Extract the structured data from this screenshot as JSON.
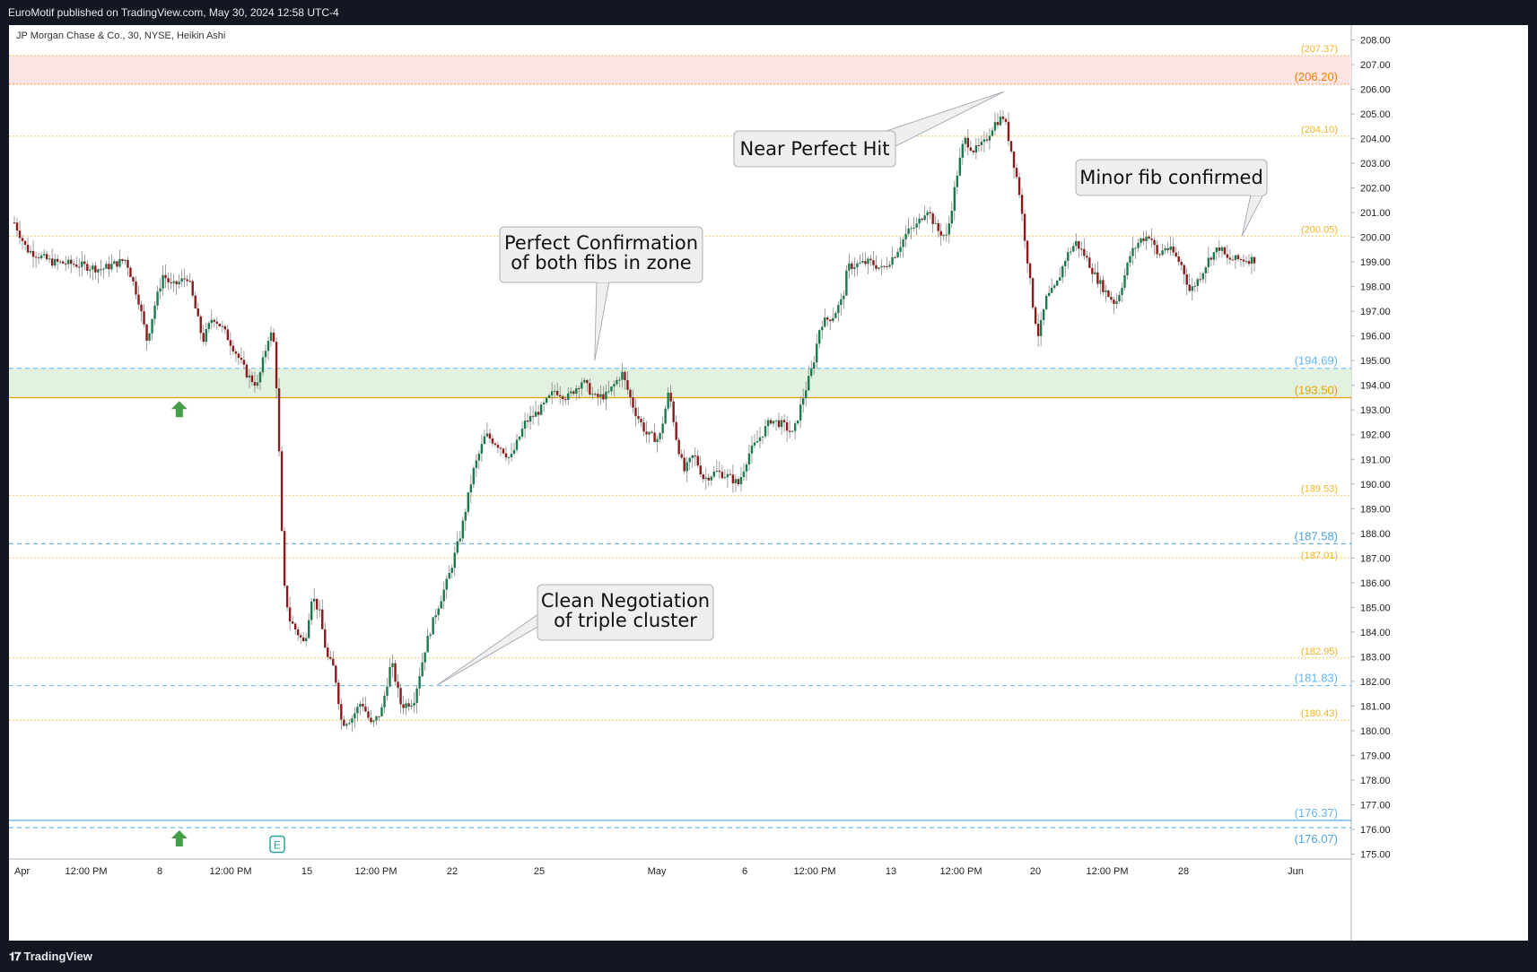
{
  "header": {
    "published": "EuroMotif published on TradingView.com, May 30, 2024 12:58 UTC-4"
  },
  "footer": {
    "logo_icon": "tradingview-logo-icon",
    "brand": "TradingView"
  },
  "chart_data": {
    "type": "candlestick",
    "legend": "JP Morgan Chase & Co., 30, NYSE, Heikin Ashi",
    "ylim": [
      174.8,
      208.6
    ],
    "y_ticks": [
      "208.00",
      "207.00",
      "206.00",
      "205.00",
      "204.00",
      "203.00",
      "202.00",
      "201.00",
      "200.00",
      "199.00",
      "198.00",
      "197.00",
      "196.00",
      "195.00",
      "194.00",
      "193.00",
      "192.00",
      "191.00",
      "190.00",
      "189.00",
      "188.00",
      "187.00",
      "186.00",
      "185.00",
      "184.00",
      "183.00",
      "182.00",
      "181.00",
      "180.00",
      "179.00",
      "178.00",
      "177.00",
      "176.00",
      "175.00"
    ],
    "x_labels": [
      "Apr",
      "12:00 PM",
      "8",
      "12:00 PM",
      "15",
      "12:00 PM",
      "22",
      "25",
      "May",
      "6",
      "12:00 PM",
      "13",
      "12:00 PM",
      "20",
      "12:00 PM",
      "28",
      "Jun"
    ],
    "levels": [
      {
        "value": 207.37,
        "label": "(207.37)",
        "color": "#f0b429",
        "style": "dotted"
      },
      {
        "value": 206.2,
        "label": "(206.20)",
        "color": "#f57c00",
        "style": "dotted"
      },
      {
        "value": 204.1,
        "label": "(204.10)",
        "color": "#f0b429",
        "style": "dotted"
      },
      {
        "value": 200.05,
        "label": "(200.05)",
        "color": "#f0b429",
        "style": "dotted"
      },
      {
        "value": 194.69,
        "label": "(194.69)",
        "color": "#64b5f6",
        "style": "dashed"
      },
      {
        "value": 193.5,
        "label": "(193.50)",
        "color": "#e6a100",
        "style": "solid"
      },
      {
        "value": 189.53,
        "label": "(189.53)",
        "color": "#f0b429",
        "style": "dotted"
      },
      {
        "value": 187.58,
        "label": "(187.58)",
        "color": "#4fa3e0",
        "style": "dashed"
      },
      {
        "value": 187.01,
        "label": "(187.01)",
        "color": "#f0b429",
        "style": "dotted"
      },
      {
        "value": 182.95,
        "label": "(182.95)",
        "color": "#f0b429",
        "style": "dotted"
      },
      {
        "value": 181.83,
        "label": "(181.83)",
        "color": "#64b5f6",
        "style": "dashed"
      },
      {
        "value": 180.43,
        "label": "(180.43)",
        "color": "#f0b429",
        "style": "dotted"
      },
      {
        "value": 176.37,
        "label": "(176.37)",
        "color": "#64b5f6",
        "style": "solid"
      },
      {
        "value": 176.07,
        "label": "(176.07)",
        "color": "#4fa3e0",
        "style": "dashed"
      }
    ],
    "zones": [
      {
        "from": 206.2,
        "to": 207.37,
        "color": "#fde5e3"
      },
      {
        "from": 193.5,
        "to": 194.69,
        "color": "#e3f1e1"
      }
    ],
    "annotations": [
      {
        "id": "near-perfect-hit",
        "lines": [
          "Near Perfect Hit"
        ],
        "target_t": 0.798,
        "target_v": 205.9
      },
      {
        "id": "minor-fib-confirmed",
        "lines": [
          "Minor fib confirmed"
        ],
        "target_t": 0.99,
        "target_v": 200.05
      },
      {
        "id": "perfect-confirmation",
        "lines": [
          "Perfect Confirmation",
          "of both fibs in zone"
        ],
        "target_t": 0.468,
        "target_v": 195.0
      },
      {
        "id": "clean-negotiation",
        "lines": [
          "Clean Negotiation",
          "of triple cluster"
        ],
        "target_t": 0.341,
        "target_v": 181.85
      }
    ],
    "markers": [
      {
        "type": "up-arrow",
        "t": 0.133,
        "v": 193.0,
        "color": "#43a047"
      },
      {
        "type": "up-arrow",
        "t": 0.133,
        "v": 175.6,
        "color": "#43a047"
      },
      {
        "type": "earnings",
        "label": "E",
        "t": 0.212,
        "v": 175.4,
        "color": "#26a69a"
      }
    ],
    "price_path": [
      [
        0.0,
        200.6
      ],
      [
        0.01,
        199.5
      ],
      [
        0.03,
        199.0
      ],
      [
        0.05,
        198.9
      ],
      [
        0.07,
        198.7
      ],
      [
        0.09,
        199.1
      ],
      [
        0.1,
        197.5
      ],
      [
        0.107,
        195.8
      ],
      [
        0.113,
        197.2
      ],
      [
        0.12,
        198.5
      ],
      [
        0.127,
        198.0
      ],
      [
        0.14,
        198.4
      ],
      [
        0.152,
        195.8
      ],
      [
        0.16,
        196.8
      ],
      [
        0.168,
        196.3
      ],
      [
        0.178,
        195.4
      ],
      [
        0.188,
        194.4
      ],
      [
        0.196,
        194.0
      ],
      [
        0.206,
        196.2
      ],
      [
        0.21,
        195.6
      ],
      [
        0.213,
        192.0
      ],
      [
        0.217,
        186.0
      ],
      [
        0.222,
        184.5
      ],
      [
        0.228,
        184.0
      ],
      [
        0.234,
        183.5
      ],
      [
        0.24,
        185.5
      ],
      [
        0.246,
        184.8
      ],
      [
        0.252,
        183.0
      ],
      [
        0.258,
        182.5
      ],
      [
        0.264,
        180.3
      ],
      [
        0.272,
        180.5
      ],
      [
        0.28,
        181.2
      ],
      [
        0.288,
        180.2
      ],
      [
        0.296,
        180.8
      ],
      [
        0.304,
        182.8
      ],
      [
        0.312,
        181.0
      ],
      [
        0.322,
        181.2
      ],
      [
        0.332,
        183.5
      ],
      [
        0.34,
        184.8
      ],
      [
        0.35,
        186.2
      ],
      [
        0.36,
        188.0
      ],
      [
        0.37,
        190.5
      ],
      [
        0.38,
        192.0
      ],
      [
        0.392,
        191.5
      ],
      [
        0.4,
        191.0
      ],
      [
        0.412,
        192.5
      ],
      [
        0.424,
        193.0
      ],
      [
        0.436,
        193.8
      ],
      [
        0.446,
        193.5
      ],
      [
        0.458,
        194.2
      ],
      [
        0.468,
        193.5
      ],
      [
        0.478,
        193.6
      ],
      [
        0.49,
        194.5
      ],
      [
        0.5,
        193.0
      ],
      [
        0.51,
        192.0
      ],
      [
        0.52,
        191.8
      ],
      [
        0.528,
        193.8
      ],
      [
        0.534,
        191.8
      ],
      [
        0.54,
        190.5
      ],
      [
        0.548,
        191.2
      ],
      [
        0.556,
        190.2
      ],
      [
        0.566,
        190.5
      ],
      [
        0.576,
        190.3
      ],
      [
        0.584,
        190.0
      ],
      [
        0.592,
        191.2
      ],
      [
        0.6,
        191.8
      ],
      [
        0.61,
        192.6
      ],
      [
        0.62,
        192.4
      ],
      [
        0.628,
        192.0
      ],
      [
        0.636,
        193.5
      ],
      [
        0.644,
        194.8
      ],
      [
        0.65,
        196.5
      ],
      [
        0.66,
        196.8
      ],
      [
        0.668,
        197.5
      ],
      [
        0.672,
        198.8
      ],
      [
        0.68,
        198.9
      ],
      [
        0.69,
        199.0
      ],
      [
        0.7,
        198.7
      ],
      [
        0.71,
        199.3
      ],
      [
        0.72,
        200.2
      ],
      [
        0.728,
        200.5
      ],
      [
        0.736,
        201.2
      ],
      [
        0.744,
        200.3
      ],
      [
        0.752,
        200.0
      ],
      [
        0.76,
        202.5
      ],
      [
        0.766,
        204.0
      ],
      [
        0.774,
        203.5
      ],
      [
        0.782,
        203.8
      ],
      [
        0.79,
        204.6
      ],
      [
        0.798,
        204.9
      ],
      [
        0.804,
        203.5
      ],
      [
        0.81,
        202.0
      ],
      [
        0.816,
        199.5
      ],
      [
        0.822,
        197.0
      ],
      [
        0.826,
        196.0
      ],
      [
        0.832,
        197.5
      ],
      [
        0.84,
        198.0
      ],
      [
        0.848,
        199.2
      ],
      [
        0.856,
        199.8
      ],
      [
        0.864,
        199.2
      ],
      [
        0.872,
        198.4
      ],
      [
        0.88,
        197.8
      ],
      [
        0.888,
        197.3
      ],
      [
        0.894,
        198.2
      ],
      [
        0.9,
        199.3
      ],
      [
        0.908,
        199.9
      ],
      [
        0.916,
        200.1
      ],
      [
        0.922,
        199.2
      ],
      [
        0.928,
        199.6
      ],
      [
        0.934,
        199.4
      ],
      [
        0.942,
        198.8
      ],
      [
        0.948,
        197.8
      ],
      [
        0.956,
        198.4
      ],
      [
        0.964,
        199.2
      ],
      [
        0.972,
        199.6
      ],
      [
        0.978,
        199.1
      ]
    ]
  }
}
